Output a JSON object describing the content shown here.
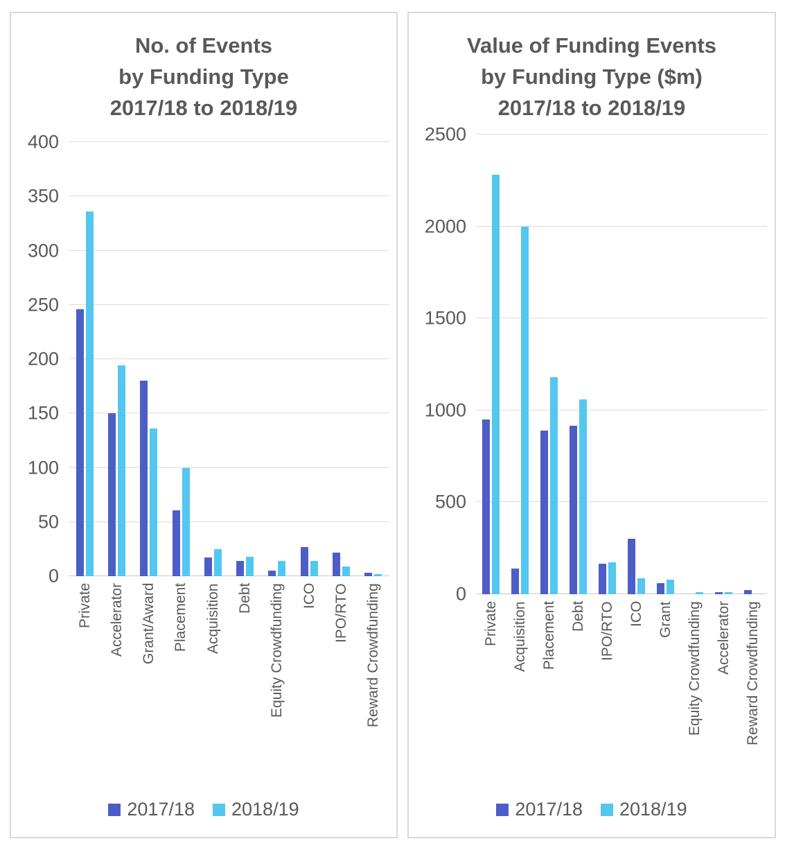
{
  "colors": {
    "text": "#595959",
    "grid": "#DADADA",
    "axis_line": "#C9C9C9",
    "panel_border": "#D9D9D9"
  },
  "chart_data": [
    {
      "type": "bar",
      "title": "No. of Events\nby Funding Type\n2017/18 to 2018/19",
      "categories": [
        "Private",
        "Accelerator",
        "Grant/Award",
        "Placement",
        "Acquisition",
        "Debt",
        "Equity Crowdfunding",
        "ICO",
        "IPO/RTO",
        "Reward Crowdfunding"
      ],
      "series": [
        {
          "name": "2017/18",
          "color": "#4C5EC6",
          "values": [
            246,
            150,
            180,
            61,
            17,
            14,
            5,
            27,
            22,
            3
          ]
        },
        {
          "name": "2018/19",
          "color": "#53C7EF",
          "values": [
            336,
            194,
            136,
            100,
            25,
            18,
            14,
            14,
            9,
            2
          ]
        }
      ],
      "xlabel": "",
      "ylabel": "",
      "ylim": [
        0,
        400
      ],
      "ytick_step": 50,
      "ytick_labels": [
        "400",
        "350",
        "300",
        "250",
        "200",
        "150",
        "100",
        "50",
        "0"
      ],
      "grid": true,
      "legend_position": "bottom"
    },
    {
      "type": "bar",
      "title": "Value of Funding Events\nby Funding Type ($m)\n2017/18 to 2018/19",
      "categories": [
        "Private",
        "Acquisition",
        "Placement",
        "Debt",
        "IPO/RTO",
        "ICO",
        "Grant",
        "Equity Crowdfunding",
        "Accelerator",
        "Reward Crowdfunding"
      ],
      "series": [
        {
          "name": "2017/18",
          "color": "#4C5EC6",
          "values": [
            950,
            140,
            890,
            915,
            165,
            300,
            60,
            0,
            10,
            22
          ]
        },
        {
          "name": "2018/19",
          "color": "#53C7EF",
          "values": [
            2280,
            2000,
            1180,
            1060,
            175,
            85,
            80,
            10,
            10,
            0
          ]
        }
      ],
      "xlabel": "",
      "ylabel": "",
      "ylim": [
        0,
        2500
      ],
      "ytick_step": 500,
      "ytick_labels": [
        "2500",
        "2000",
        "1500",
        "1000",
        "500",
        "0"
      ],
      "grid": true,
      "legend_position": "bottom"
    }
  ]
}
